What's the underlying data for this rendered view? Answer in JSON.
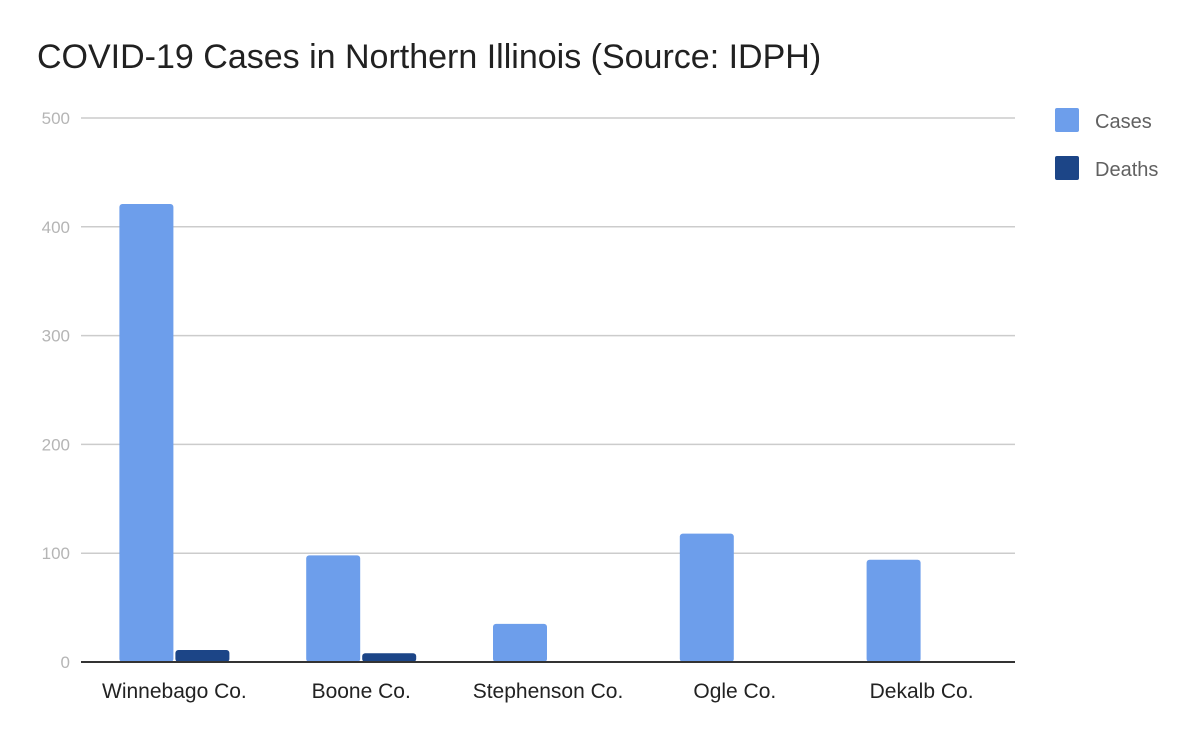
{
  "chart_data": {
    "type": "bar",
    "title": "COVID-19 Cases in Northern Illinois (Source: IDPH)",
    "xlabel": "",
    "ylabel": "",
    "categories": [
      "Winnebago Co.",
      "Boone Co.",
      "Stephenson Co.",
      "Ogle Co.",
      "Dekalb Co."
    ],
    "series": [
      {
        "name": "Cases",
        "values": [
          421,
          98,
          35,
          118,
          94
        ],
        "color": "#6d9eeb"
      },
      {
        "name": "Deaths",
        "values": [
          11,
          8,
          0,
          0,
          0
        ],
        "color": "#1c4587"
      }
    ],
    "ylim": [
      0,
      500
    ],
    "yticks": [
      0,
      100,
      200,
      300,
      400,
      500
    ],
    "grid": true,
    "legend_position": "right"
  }
}
